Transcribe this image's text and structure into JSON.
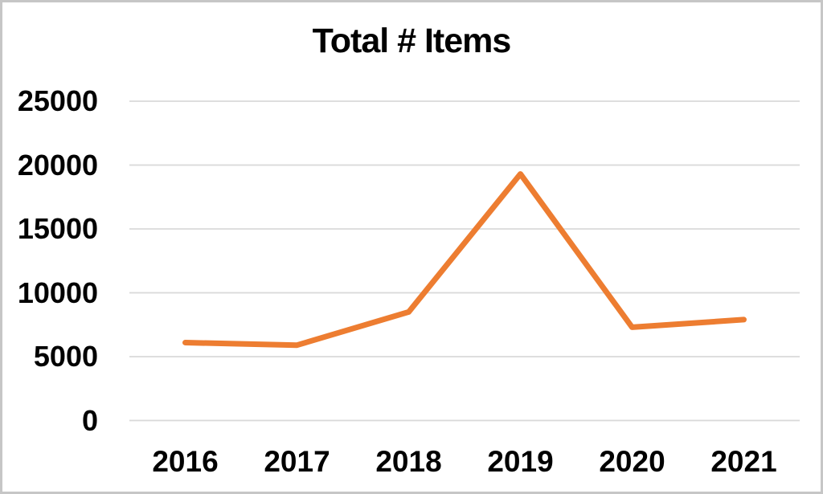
{
  "window": {
    "background_color": "#FFFFFF",
    "border_color": "#C6C6C6"
  },
  "chart_data": {
    "type": "line",
    "title": "Total # Items",
    "categories": [
      "2016",
      "2017",
      "2018",
      "2019",
      "2020",
      "2021"
    ],
    "values": [
      6100,
      5900,
      8500,
      19300,
      7300,
      7900
    ],
    "xlabel": "",
    "ylabel": "",
    "ylim": [
      0,
      25000
    ],
    "ytick_step": 5000,
    "yticks": [
      0,
      5000,
      10000,
      15000,
      20000,
      25000
    ],
    "ytick_labels": [
      "0",
      "5000",
      "10000",
      "15000",
      "20000",
      "25000"
    ],
    "grid": "horizontal",
    "legend": "none",
    "line_color": "#ED7D31",
    "line_width": 7,
    "gridline_color": "#D9D9D9",
    "text_color": "#000000"
  }
}
